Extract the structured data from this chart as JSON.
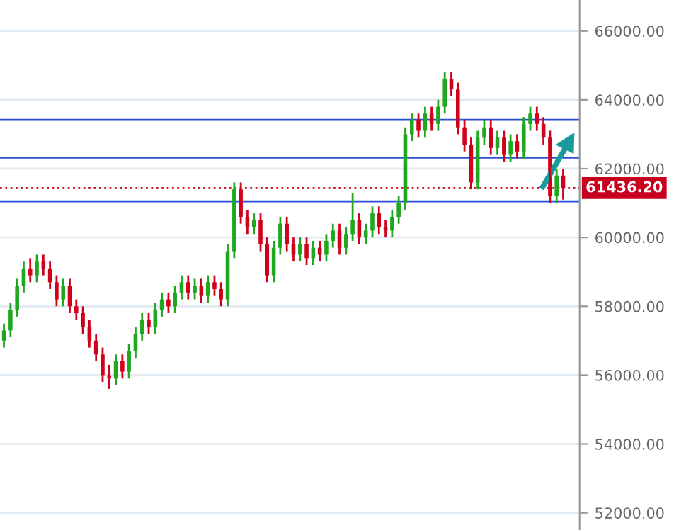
{
  "chart_data": {
    "type": "candlestick",
    "categories": [
      null,
      null,
      null,
      null,
      null,
      null,
      null,
      null,
      null,
      null,
      null,
      null,
      null,
      null,
      null,
      null,
      null,
      null,
      null,
      null,
      null,
      null,
      null,
      null,
      null,
      null,
      null,
      null,
      null,
      null,
      null,
      null,
      null,
      null,
      null,
      null,
      null,
      null,
      null,
      null,
      null,
      null,
      null,
      null,
      null,
      null,
      null,
      null,
      null,
      null,
      null,
      null,
      null,
      null,
      null,
      null,
      null,
      null,
      null,
      null,
      null,
      null,
      null,
      null,
      null,
      null,
      null,
      null,
      null,
      null,
      null,
      null,
      null,
      null,
      null,
      null,
      null,
      null,
      null,
      null,
      null,
      null,
      null,
      null,
      null,
      null
    ],
    "ohlc": [
      [
        57000,
        57500,
        56800,
        57300
      ],
      [
        57300,
        58100,
        57100,
        57900
      ],
      [
        57900,
        58800,
        57700,
        58600
      ],
      [
        58600,
        59300,
        58400,
        59100
      ],
      [
        59100,
        59400,
        58700,
        58900
      ],
      [
        58900,
        59500,
        58700,
        59300
      ],
      [
        59300,
        59500,
        58900,
        59100
      ],
      [
        59100,
        59300,
        58500,
        58700
      ],
      [
        58700,
        58900,
        58000,
        58200
      ],
      [
        58200,
        58800,
        58000,
        58600
      ],
      [
        58600,
        58800,
        57800,
        58000
      ],
      [
        58000,
        58200,
        57600,
        57800
      ],
      [
        57800,
        58000,
        57200,
        57400
      ],
      [
        57400,
        57600,
        56800,
        57000
      ],
      [
        57000,
        57200,
        56400,
        56600
      ],
      [
        56600,
        56800,
        55800,
        56000
      ],
      [
        56000,
        56300,
        55600,
        55900
      ],
      [
        55900,
        56600,
        55700,
        56400
      ],
      [
        56400,
        56600,
        55900,
        56100
      ],
      [
        56100,
        56900,
        55900,
        56700
      ],
      [
        56700,
        57400,
        56500,
        57200
      ],
      [
        57200,
        57800,
        57000,
        57600
      ],
      [
        57600,
        57800,
        57200,
        57400
      ],
      [
        57400,
        58100,
        57200,
        57900
      ],
      [
        57900,
        58400,
        57700,
        58200
      ],
      [
        58200,
        58400,
        57800,
        58000
      ],
      [
        58000,
        58600,
        57800,
        58400
      ],
      [
        58400,
        58900,
        58200,
        58700
      ],
      [
        58700,
        58900,
        58200,
        58400
      ],
      [
        58400,
        58800,
        58200,
        58600
      ],
      [
        58600,
        58800,
        58100,
        58300
      ],
      [
        58300,
        58900,
        58100,
        58700
      ],
      [
        58700,
        58900,
        58300,
        58500
      ],
      [
        58500,
        58700,
        58000,
        58200
      ],
      [
        58200,
        59800,
        58000,
        59600
      ],
      [
        59600,
        61600,
        59400,
        61400
      ],
      [
        61400,
        61600,
        60400,
        60600
      ],
      [
        60600,
        60800,
        60100,
        60300
      ],
      [
        60300,
        60700,
        60100,
        60500
      ],
      [
        60500,
        60700,
        59600,
        59800
      ],
      [
        59800,
        60000,
        58700,
        58900
      ],
      [
        58900,
        59900,
        58700,
        59700
      ],
      [
        59700,
        60600,
        59500,
        60400
      ],
      [
        60400,
        60600,
        59600,
        59800
      ],
      [
        59800,
        60000,
        59300,
        59500
      ],
      [
        59500,
        60000,
        59300,
        59800
      ],
      [
        59800,
        60000,
        59200,
        59400
      ],
      [
        59400,
        59900,
        59200,
        59700
      ],
      [
        59700,
        59900,
        59300,
        59500
      ],
      [
        59500,
        60100,
        59300,
        59900
      ],
      [
        59900,
        60400,
        59700,
        60200
      ],
      [
        60200,
        60400,
        59500,
        59700
      ],
      [
        59700,
        60300,
        59500,
        60100
      ],
      [
        60100,
        61300,
        59900,
        60500
      ],
      [
        60500,
        60700,
        59800,
        60000
      ],
      [
        60000,
        60400,
        59800,
        60200
      ],
      [
        60200,
        60900,
        60000,
        60700
      ],
      [
        60700,
        60900,
        60100,
        60300
      ],
      [
        60300,
        60500,
        60000,
        60200
      ],
      [
        60200,
        60800,
        60000,
        60600
      ],
      [
        60600,
        61200,
        60400,
        61000
      ],
      [
        61000,
        63200,
        60800,
        63000
      ],
      [
        63000,
        63600,
        62800,
        63400
      ],
      [
        63400,
        63600,
        62900,
        63100
      ],
      [
        63100,
        63800,
        62900,
        63600
      ],
      [
        63600,
        63800,
        63100,
        63300
      ],
      [
        63300,
        64000,
        63100,
        63800
      ],
      [
        63800,
        64800,
        63600,
        64600
      ],
      [
        64600,
        64800,
        64100,
        64300
      ],
      [
        64300,
        64500,
        63000,
        63200
      ],
      [
        63200,
        63400,
        62500,
        62700
      ],
      [
        62700,
        62900,
        61400,
        61600
      ],
      [
        61600,
        63100,
        61400,
        62900
      ],
      [
        62900,
        63400,
        62700,
        63200
      ],
      [
        63200,
        63400,
        62400,
        62600
      ],
      [
        62600,
        63100,
        62400,
        62900
      ],
      [
        62900,
        63100,
        62200,
        62400
      ],
      [
        62400,
        63000,
        62200,
        62800
      ],
      [
        62800,
        63000,
        62300,
        62500
      ],
      [
        62500,
        63500,
        62300,
        63300
      ],
      [
        63300,
        63800,
        63100,
        63600
      ],
      [
        63600,
        63800,
        63100,
        63300
      ],
      [
        63300,
        63500,
        62700,
        62900
      ],
      [
        62900,
        63100,
        61000,
        61200
      ],
      [
        61200,
        62000,
        61000,
        61800
      ],
      [
        61800,
        62000,
        61100,
        61436.2
      ]
    ],
    "ylim": [
      51500,
      66900
    ],
    "yticks": [
      {
        "value": 52000,
        "label": "52000.00"
      },
      {
        "value": 54000,
        "label": "54000.00"
      },
      {
        "value": 56000,
        "label": "56000.00"
      },
      {
        "value": 58000,
        "label": "58000.00"
      },
      {
        "value": 60000,
        "label": "60000.00"
      },
      {
        "value": 62000,
        "label": "62000.00"
      },
      {
        "value": 64000,
        "label": "64000.00"
      },
      {
        "value": 66000,
        "label": "66000.00"
      }
    ],
    "ref_lines": [
      {
        "axis": "y",
        "value": 61436.2,
        "label": "61436.20",
        "color": "#c8001e",
        "line_style": "dotted"
      },
      {
        "axis": "y",
        "value": 61050,
        "color": "#2a4fd6",
        "line_style": "solid"
      },
      {
        "axis": "y",
        "value": 63420,
        "color": "#2a4fd6",
        "line_style": "solid"
      },
      {
        "axis": "y",
        "value": 62320,
        "color": "#2a4fd6",
        "line_style": "solid"
      }
    ],
    "grid": "y",
    "tick_labels": "y"
  }
}
